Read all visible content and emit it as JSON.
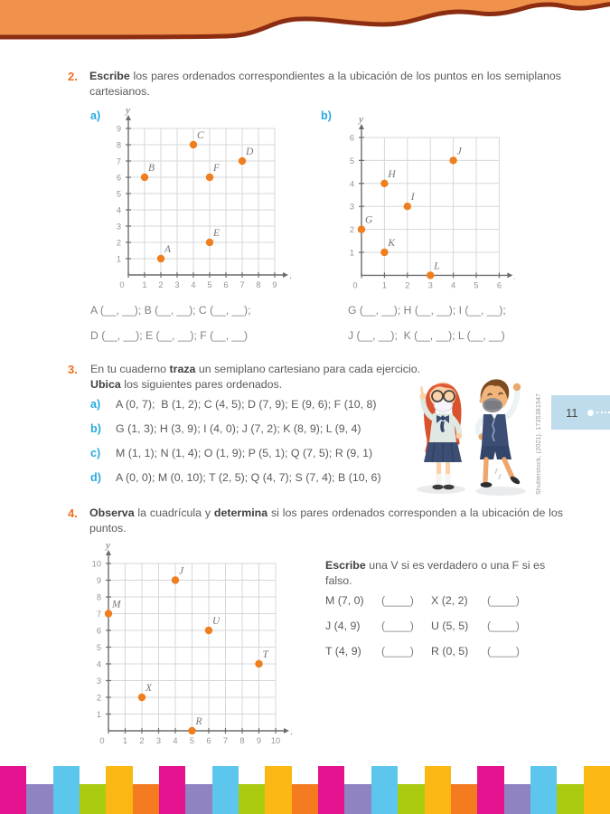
{
  "colors": {
    "accent_orange": "#f07021",
    "accent_blue": "#29a8df",
    "text_dark": "#5a5b5e",
    "bold_text": "#414042",
    "grid_line": "#d6d7d9",
    "axis": "#6b6c6f",
    "tick_text": "#939598",
    "point": "#ee7e1e",
    "point_label": "#76777a",
    "wave_fill": "#f0914c",
    "wave_border": "#8c2d12",
    "badge_bg": "#bedcec",
    "badge_text": "#4b4b4d",
    "credit_text": "#97989b"
  },
  "header": {
    "page_number": "11",
    "credit": "Shutterstock, (2021). 1735381947"
  },
  "ex2": {
    "num": "2.",
    "intro_bold": "Escribe",
    "intro_rest": " los pares ordenados correspondientes a la ubicación de los puntos en los semiplanos cartesianos.",
    "label_a": "a)",
    "label_b": "b)",
    "answers_a_line1": "A (__, __); B (__, __); C (__, __);",
    "answers_a_line2": "D (__, __); E (__, __); F (__, __)",
    "answers_b_line1": "G (__, __); H (__, __); I (__, __);",
    "answers_b_line2": "J (__, __);  K (__, __); L (__, __)"
  },
  "ex3": {
    "num": "3.",
    "line1_pre": "En tu cuaderno ",
    "line1_bold": "traza",
    "line1_post": " un semiplano cartesiano para cada ejercicio.",
    "line2_bold": "Ubica",
    "line2_post": " los siguientes pares ordenados.",
    "items": [
      {
        "label": "a)",
        "text": "A (0, 7);  B (1, 2); C (4, 5); D (7, 9); E (9, 6); F (10, 8)"
      },
      {
        "label": "b)",
        "text": "G (1, 3); H (3, 9); I (4, 0); J (7, 2); K (8, 9); L (9, 4)"
      },
      {
        "label": "c)",
        "text": "M (1, 1); N (1, 4); O (1, 9); P (5, 1); Q (7, 5); R (9, 1)"
      },
      {
        "label": "d)",
        "text": "A (0, 0); M (0, 10); T (2, 5); Q (4, 7); S (7, 4); B (10, 6)"
      }
    ]
  },
  "ex4": {
    "num": "4.",
    "intro_bold1": "Observa",
    "intro_mid": " la cuadrícula y ",
    "intro_bold2": "determina",
    "intro_post": " si los pares ordenados corresponden a la ubicación de los puntos.",
    "vf_bold": "Escribe",
    "vf_rest": " una V si es verdadero o una F si es falso.",
    "vf_items": [
      {
        "left_label": "M (7, 0)",
        "left_blank": "(____)",
        "right_label": "X (2, 2)",
        "right_blank": "(____)"
      },
      {
        "left_label": "J (4, 9)",
        "left_blank": "(____)",
        "right_label": "U (5, 5)",
        "right_blank": "(____)"
      },
      {
        "left_label": "T (4, 9)",
        "left_blank": "(____)",
        "right_label": "R (0, 5)",
        "right_blank": "(____)"
      }
    ]
  },
  "chart_data": [
    {
      "id": "grid-a",
      "type": "scatter",
      "title": "a)",
      "xlabel": "x",
      "ylabel": "y",
      "xlim": [
        0,
        9
      ],
      "ylim": [
        0,
        9
      ],
      "grid": true,
      "points": [
        {
          "label": "A",
          "x": 2,
          "y": 1
        },
        {
          "label": "B",
          "x": 1,
          "y": 6
        },
        {
          "label": "C",
          "x": 4,
          "y": 8
        },
        {
          "label": "D",
          "x": 7,
          "y": 7
        },
        {
          "label": "E",
          "x": 5,
          "y": 2
        },
        {
          "label": "F",
          "x": 5,
          "y": 6
        }
      ]
    },
    {
      "id": "grid-b",
      "type": "scatter",
      "title": "b)",
      "xlabel": "x",
      "ylabel": "y",
      "xlim": [
        0,
        6
      ],
      "ylim": [
        0,
        6
      ],
      "grid": true,
      "points": [
        {
          "label": "G",
          "x": 0,
          "y": 2
        },
        {
          "label": "H",
          "x": 1,
          "y": 4
        },
        {
          "label": "I",
          "x": 2,
          "y": 3
        },
        {
          "label": "J",
          "x": 4,
          "y": 5
        },
        {
          "label": "K",
          "x": 1,
          "y": 1
        },
        {
          "label": "L",
          "x": 3,
          "y": 0
        }
      ]
    },
    {
      "id": "grid-c",
      "type": "scatter",
      "title": "",
      "xlabel": "x",
      "ylabel": "y",
      "xlim": [
        0,
        10
      ],
      "ylim": [
        0,
        10
      ],
      "grid": true,
      "points": [
        {
          "label": "M",
          "x": 0,
          "y": 7
        },
        {
          "label": "J",
          "x": 4,
          "y": 9
        },
        {
          "label": "U",
          "x": 6,
          "y": 6
        },
        {
          "label": "T",
          "x": 9,
          "y": 4
        },
        {
          "label": "X",
          "x": 2,
          "y": 2
        },
        {
          "label": "R",
          "x": 5,
          "y": 0
        }
      ]
    }
  ],
  "footer": {
    "count": 23,
    "block_colors": [
      "#e5128f",
      "#8f83c1",
      "#5cc6ec",
      "#a9cb10",
      "#fbb713",
      "#f47b20"
    ]
  }
}
